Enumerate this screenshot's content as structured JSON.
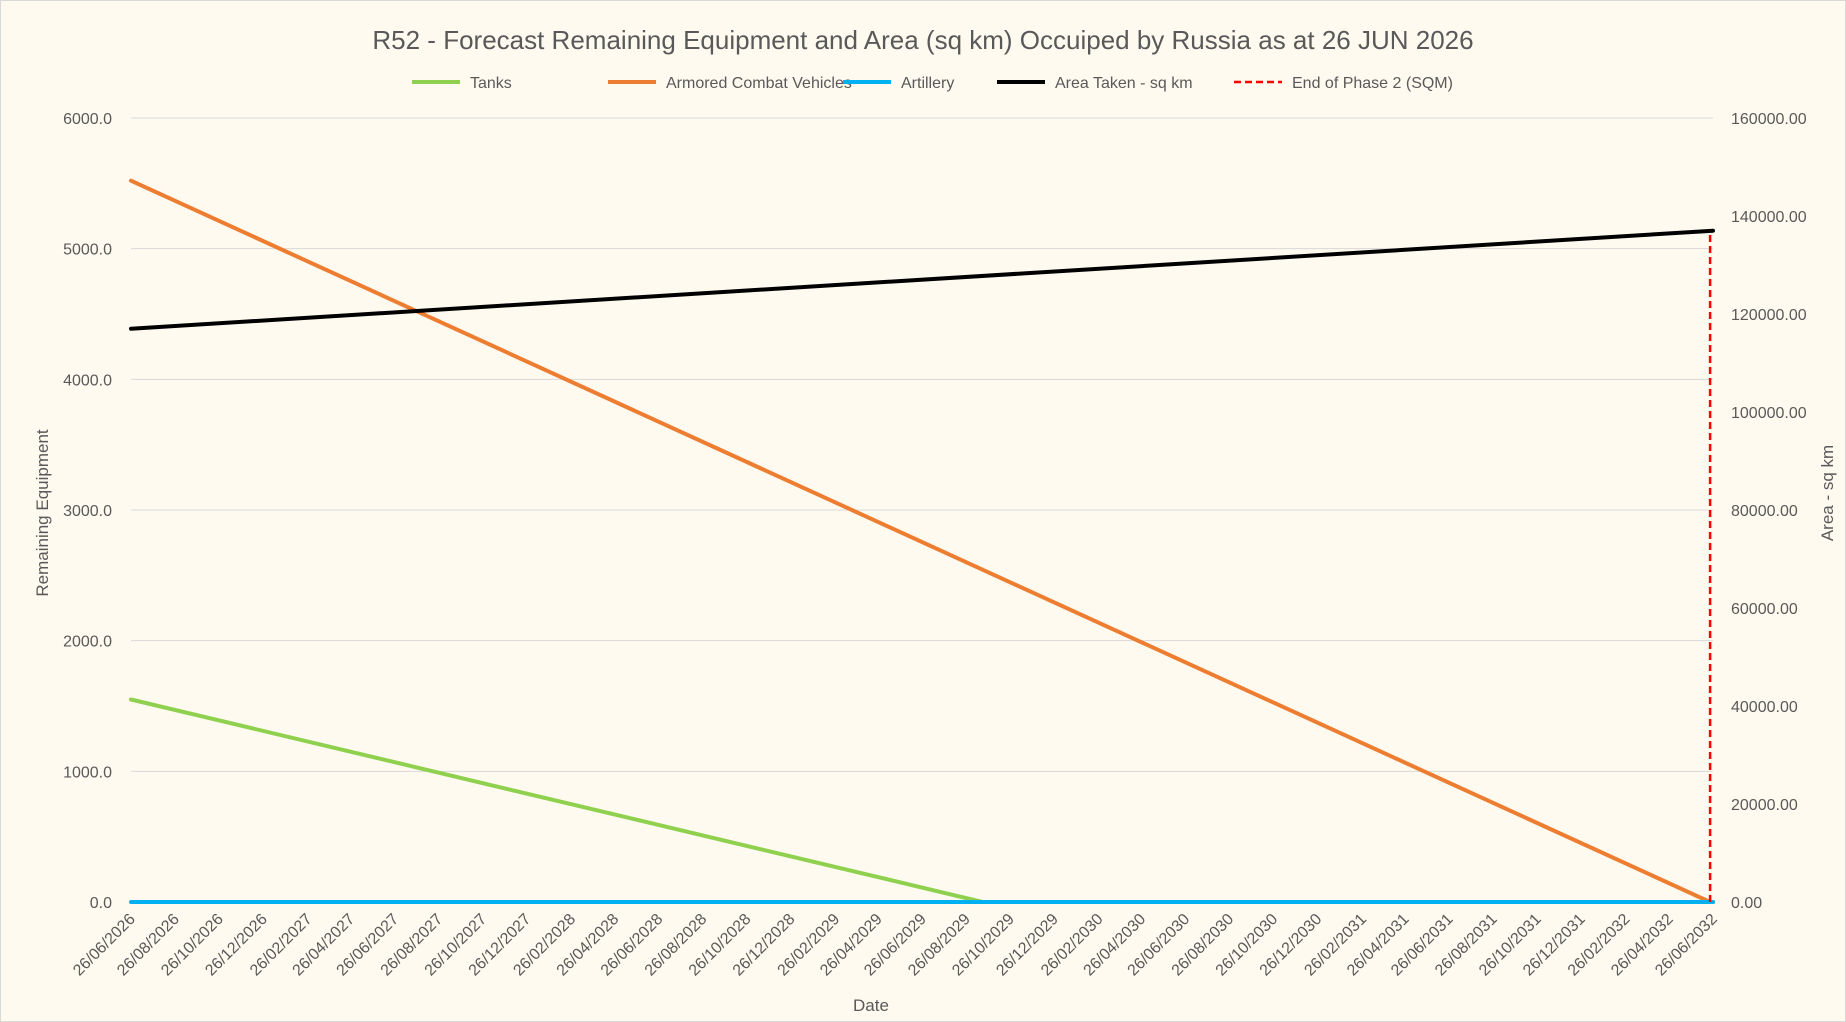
{
  "chart_data": {
    "type": "line",
    "title": "R52 - Forecast Remaining Equipment and Area (sq km) Occuiped by Russia as at 26 JUN 2026",
    "xlabel": "Date",
    "ylabel": "Remaining Equipment",
    "y2label": "Area - sq km",
    "ylim": [
      0,
      6000
    ],
    "y2lim": [
      0,
      160000
    ],
    "y_ticks": [
      "0.0",
      "1000.0",
      "2000.0",
      "3000.0",
      "4000.0",
      "5000.0",
      "6000.0"
    ],
    "y2_ticks": [
      "0.00",
      "20000.00",
      "40000.00",
      "60000.00",
      "80000.00",
      "100000.00",
      "120000.00",
      "140000.00",
      "160000.00"
    ],
    "grid": true,
    "legend_position": "top",
    "x_ticks": [
      "26/06/2026",
      "26/08/2026",
      "26/10/2026",
      "26/12/2026",
      "26/02/2027",
      "26/04/2027",
      "26/06/2027",
      "26/08/2027",
      "26/10/2027",
      "26/12/2027",
      "26/02/2028",
      "26/04/2028",
      "26/06/2028",
      "26/08/2028",
      "26/10/2028",
      "26/12/2028",
      "26/02/2029",
      "26/04/2029",
      "26/06/2029",
      "26/08/2029",
      "26/10/2029",
      "26/12/2029",
      "26/02/2030",
      "26/04/2030",
      "26/06/2030",
      "26/08/2030",
      "26/10/2030",
      "26/12/2030",
      "26/02/2031",
      "26/04/2031",
      "26/06/2031",
      "26/08/2031",
      "26/10/2031",
      "26/12/2031",
      "26/02/2032",
      "26/04/2032",
      "26/06/2032"
    ],
    "series": [
      {
        "name": "Tanks",
        "axis": "left",
        "color": "#8fd14f",
        "dash": false,
        "points": [
          [
            "26/06/2026",
            1550
          ],
          [
            "18/09/2029",
            0
          ],
          [
            "26/06/2032",
            0
          ]
        ]
      },
      {
        "name": "Armored Combat Vehicles",
        "axis": "left",
        "color": "#ed7d31",
        "dash": false,
        "points": [
          [
            "26/06/2026",
            5520
          ],
          [
            "22/06/2032",
            0
          ],
          [
            "26/06/2032",
            0
          ]
        ]
      },
      {
        "name": "Artillery",
        "axis": "left",
        "color": "#00b0f0",
        "dash": false,
        "points": [
          [
            "26/06/2026",
            0
          ],
          [
            "26/06/2032",
            0
          ]
        ]
      },
      {
        "name": "Area Taken - sq km",
        "axis": "right",
        "color": "#000000",
        "dash": false,
        "points": [
          [
            "26/06/2026",
            117000
          ],
          [
            "26/06/2032",
            137000
          ]
        ]
      },
      {
        "name": "End of Phase 2 (SQM)",
        "axis": "right",
        "color": "#ff0000",
        "dash": true,
        "points": [
          [
            "22/06/2032",
            0
          ],
          [
            "22/06/2032",
            137000
          ]
        ]
      }
    ]
  }
}
